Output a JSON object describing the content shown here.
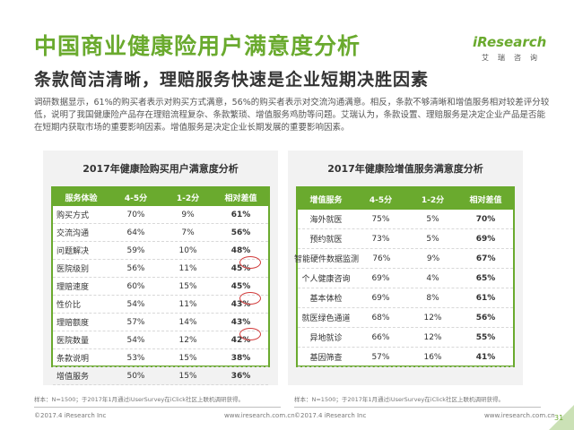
{
  "title": "中国商业健康险用户满意度分析",
  "subtitle": "条款简洁清晰，理赔服务快速是企业短期决胜因素",
  "logo": {
    "main": "iResearch",
    "sub": "艾瑞咨询"
  },
  "description": "调研数据显示，61%的购买者表示对购买方式满意，56%的购买者表示对交流沟通满意。相反，条款不够清晰和增值服务相对较差评分较低，说明了我国健康险产品存在理赔流程复杂、条款繁琐、增值服务鸡肋等问题。艾瑞认为，条款设置、理赔服务是决定企业产品是否能在短期内获取市场的重要影响因素。增值服务是决定企业长期发展的重要影响因素。",
  "left_table": {
    "title": "2017年健康险购买用户满意度分析",
    "headers": [
      "服务体验",
      "4-5分",
      "1-2分",
      "相对差值"
    ],
    "rows": [
      [
        "购买方式",
        "70%",
        "9%",
        "61%"
      ],
      [
        "交流沟通",
        "64%",
        "7%",
        "56%"
      ],
      [
        "问题解决",
        "59%",
        "10%",
        "48%"
      ],
      [
        "医院级别",
        "56%",
        "11%",
        "45%"
      ],
      [
        "理赔速度",
        "60%",
        "15%",
        "45%"
      ],
      [
        "性价比",
        "54%",
        "11%",
        "43%"
      ],
      [
        "理赔额度",
        "57%",
        "14%",
        "43%"
      ],
      [
        "医院数量",
        "54%",
        "12%",
        "42%"
      ],
      [
        "条款说明",
        "53%",
        "15%",
        "38%"
      ],
      [
        "增值服务",
        "50%",
        "15%",
        "36%"
      ]
    ]
  },
  "right_table": {
    "title": "2017年健康险增值服务满意度分析",
    "headers": [
      "增值服务",
      "4-5分",
      "1-2分",
      "相对差值"
    ],
    "rows": [
      [
        "海外就医",
        "75%",
        "5%",
        "70%"
      ],
      [
        "预约就医",
        "73%",
        "5%",
        "69%"
      ],
      [
        "智能硬件数据监测",
        "76%",
        "9%",
        "67%"
      ],
      [
        "个人健康咨询",
        "69%",
        "4%",
        "65%"
      ],
      [
        "基本体检",
        "69%",
        "8%",
        "61%"
      ],
      [
        "就医绿色通道",
        "68%",
        "12%",
        "56%"
      ],
      [
        "异地就诊",
        "66%",
        "12%",
        "55%"
      ],
      [
        "基因筛查",
        "57%",
        "16%",
        "41%"
      ]
    ]
  },
  "note": "样本：N=1500；于2017年1月通过iUserSurvey在iClick社区上联机调研获得。",
  "footer": {
    "copyright": "©2017.4 iResearch Inc",
    "url": "www.iresearch.com.cn",
    "page": "31"
  },
  "colors": {
    "accent": "#6aaa2e",
    "circle": "#d23b3b"
  }
}
